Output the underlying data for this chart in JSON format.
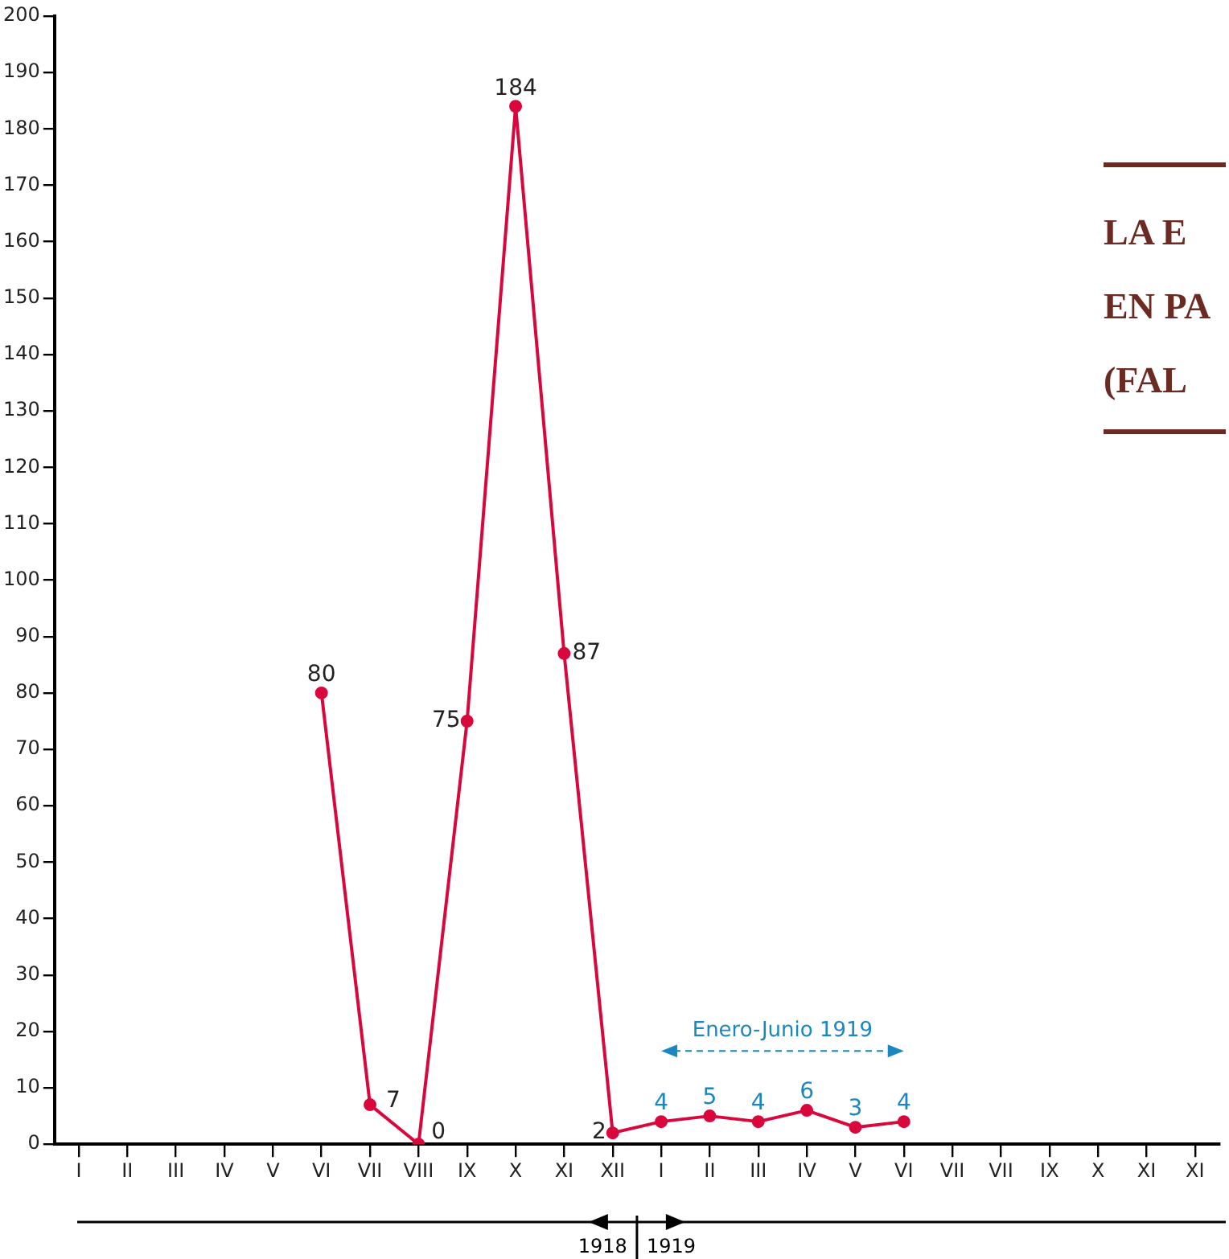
{
  "chart_data": {
    "type": "line",
    "title": "LA E\nEN PA\n(FAL",
    "categories": [
      "I",
      "II",
      "III",
      "IV",
      "V",
      "VI",
      "VII",
      "VIII",
      "IX",
      "X",
      "XI",
      "XII",
      "I",
      "II",
      "III",
      "IV",
      "V",
      "VI",
      "VII",
      "VII",
      "IX",
      "X",
      "XI",
      "XI"
    ],
    "series": [
      {
        "color": "#d9083c",
        "values": [
          null,
          null,
          null,
          null,
          null,
          80,
          7,
          0,
          75,
          184,
          87,
          2,
          4,
          5,
          4,
          6,
          3,
          4,
          null,
          null,
          null,
          null,
          null,
          null
        ]
      }
    ],
    "ylim": [
      0,
      200
    ],
    "yticks": [
      0,
      10,
      20,
      30,
      40,
      50,
      60,
      70,
      80,
      90,
      100,
      110,
      120,
      130,
      140,
      150,
      160,
      170,
      180,
      190,
      200
    ],
    "data_labels": true,
    "marker": "circle",
    "line_style": "solid",
    "grid": false,
    "legend": false,
    "annotations": [
      "Enero-Junio 1919",
      "1918",
      "1919"
    ]
  }
}
